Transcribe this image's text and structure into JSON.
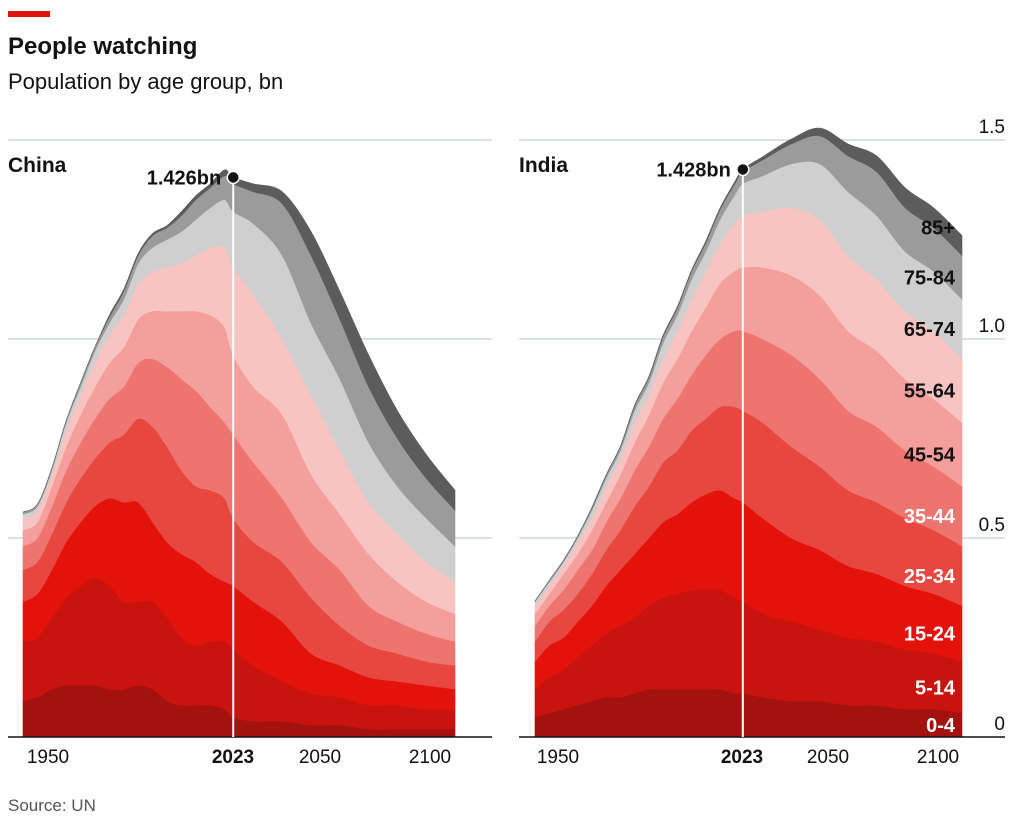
{
  "title": "People watching",
  "subtitle": "Population by age group, bn",
  "source": "Source: UN",
  "colors": {
    "accent": "#e3120b",
    "grid": "#b7c6cf",
    "axis": "#121212",
    "bands": [
      "#a3120e",
      "#c9130f",
      "#e3120b",
      "#e8473f",
      "#ee7470",
      "#f49f9b",
      "#f7c4c1",
      "#cfcfcf",
      "#9b9b9b",
      "#5c5c5c"
    ]
  },
  "chart_data": [
    {
      "type": "area",
      "stacked": true,
      "panel": "China",
      "x": [
        1950,
        1955,
        1960,
        1965,
        1970,
        1975,
        1980,
        1985,
        1990,
        1995,
        2000,
        2005,
        2010,
        2015,
        2020,
        2023,
        2030,
        2040,
        2050,
        2060,
        2070,
        2080,
        2090,
        2100
      ],
      "series": [
        {
          "name": "0-4",
          "values": [
            0.09,
            0.1,
            0.12,
            0.13,
            0.13,
            0.13,
            0.12,
            0.12,
            0.13,
            0.12,
            0.09,
            0.08,
            0.08,
            0.08,
            0.07,
            0.05,
            0.04,
            0.04,
            0.03,
            0.03,
            0.02,
            0.02,
            0.02,
            0.02
          ]
        },
        {
          "name": "5-14",
          "values": [
            0.15,
            0.15,
            0.18,
            0.22,
            0.25,
            0.27,
            0.26,
            0.22,
            0.21,
            0.22,
            0.21,
            0.17,
            0.15,
            0.16,
            0.17,
            0.17,
            0.14,
            0.1,
            0.08,
            0.07,
            0.06,
            0.06,
            0.05,
            0.05
          ]
        },
        {
          "name": "15-24",
          "values": [
            0.1,
            0.11,
            0.12,
            0.14,
            0.16,
            0.18,
            0.22,
            0.25,
            0.25,
            0.2,
            0.19,
            0.21,
            0.21,
            0.17,
            0.15,
            0.16,
            0.16,
            0.15,
            0.1,
            0.08,
            0.07,
            0.06,
            0.06,
            0.05
          ]
        },
        {
          "name": "25-34",
          "values": [
            0.08,
            0.08,
            0.09,
            0.1,
            0.11,
            0.12,
            0.14,
            0.17,
            0.21,
            0.24,
            0.24,
            0.21,
            0.19,
            0.21,
            0.21,
            0.17,
            0.15,
            0.15,
            0.14,
            0.1,
            0.08,
            0.07,
            0.06,
            0.06
          ]
        },
        {
          "name": "35-44",
          "values": [
            0.06,
            0.06,
            0.07,
            0.08,
            0.09,
            0.1,
            0.11,
            0.12,
            0.14,
            0.17,
            0.2,
            0.23,
            0.24,
            0.21,
            0.19,
            0.21,
            0.2,
            0.16,
            0.14,
            0.14,
            0.1,
            0.08,
            0.07,
            0.06
          ]
        },
        {
          "name": "45-54",
          "values": [
            0.04,
            0.04,
            0.05,
            0.06,
            0.07,
            0.08,
            0.09,
            0.1,
            0.11,
            0.12,
            0.14,
            0.17,
            0.2,
            0.23,
            0.24,
            0.2,
            0.19,
            0.21,
            0.17,
            0.14,
            0.13,
            0.1,
            0.08,
            0.07
          ]
        },
        {
          "name": "55-64",
          "values": [
            0.03,
            0.03,
            0.03,
            0.04,
            0.05,
            0.06,
            0.07,
            0.08,
            0.09,
            0.1,
            0.11,
            0.12,
            0.14,
            0.17,
            0.2,
            0.22,
            0.23,
            0.19,
            0.2,
            0.16,
            0.13,
            0.12,
            0.1,
            0.08
          ]
        },
        {
          "name": "65-74",
          "values": [
            0.01,
            0.01,
            0.01,
            0.02,
            0.02,
            0.03,
            0.03,
            0.04,
            0.05,
            0.06,
            0.07,
            0.08,
            0.09,
            0.1,
            0.12,
            0.14,
            0.18,
            0.21,
            0.18,
            0.18,
            0.15,
            0.12,
            0.11,
            0.09
          ]
        },
        {
          "name": "75-84",
          "values": [
            0.005,
            0.005,
            0.005,
            0.005,
            0.01,
            0.01,
            0.015,
            0.02,
            0.02,
            0.03,
            0.03,
            0.04,
            0.05,
            0.05,
            0.06,
            0.07,
            0.08,
            0.13,
            0.17,
            0.15,
            0.14,
            0.12,
            0.1,
            0.09
          ]
        },
        {
          "name": "85+",
          "values": [
            0.0,
            0.0,
            0.0,
            0.0,
            0.0,
            0.0,
            0.005,
            0.005,
            0.005,
            0.005,
            0.005,
            0.01,
            0.01,
            0.01,
            0.015,
            0.016,
            0.02,
            0.03,
            0.06,
            0.07,
            0.08,
            0.07,
            0.06,
            0.05
          ]
        }
      ],
      "annotation": {
        "x": 2023,
        "label": "1.426bn"
      },
      "xticks": [
        1950,
        2023,
        2050,
        2100
      ],
      "xlim": [
        1950,
        2100
      ],
      "ylim": [
        0,
        1.5
      ],
      "yticks": [
        0,
        0.5,
        1.0,
        1.5
      ],
      "grid": true
    },
    {
      "type": "area",
      "stacked": true,
      "panel": "India",
      "x": [
        1950,
        1955,
        1960,
        1965,
        1970,
        1975,
        1980,
        1985,
        1990,
        1995,
        2000,
        2005,
        2010,
        2015,
        2020,
        2023,
        2030,
        2040,
        2050,
        2060,
        2070,
        2080,
        2090,
        2100
      ],
      "series": [
        {
          "name": "0-4",
          "values": [
            0.05,
            0.06,
            0.07,
            0.08,
            0.09,
            0.1,
            0.1,
            0.11,
            0.12,
            0.12,
            0.12,
            0.12,
            0.12,
            0.12,
            0.11,
            0.11,
            0.1,
            0.09,
            0.09,
            0.08,
            0.08,
            0.07,
            0.07,
            0.06
          ]
        },
        {
          "name": "5-14",
          "values": [
            0.07,
            0.09,
            0.1,
            0.12,
            0.14,
            0.16,
            0.18,
            0.19,
            0.21,
            0.23,
            0.24,
            0.25,
            0.25,
            0.25,
            0.24,
            0.23,
            0.21,
            0.2,
            0.18,
            0.17,
            0.16,
            0.15,
            0.14,
            0.13
          ]
        },
        {
          "name": "15-24",
          "values": [
            0.07,
            0.08,
            0.08,
            0.09,
            0.1,
            0.12,
            0.14,
            0.16,
            0.17,
            0.19,
            0.2,
            0.22,
            0.24,
            0.25,
            0.25,
            0.25,
            0.24,
            0.21,
            0.2,
            0.18,
            0.17,
            0.16,
            0.15,
            0.14
          ]
        },
        {
          "name": "25-34",
          "values": [
            0.05,
            0.06,
            0.07,
            0.07,
            0.08,
            0.09,
            0.1,
            0.12,
            0.13,
            0.15,
            0.16,
            0.18,
            0.19,
            0.21,
            0.23,
            0.23,
            0.24,
            0.23,
            0.21,
            0.19,
            0.18,
            0.17,
            0.16,
            0.15
          ]
        },
        {
          "name": "35-44",
          "values": [
            0.04,
            0.04,
            0.05,
            0.06,
            0.06,
            0.07,
            0.08,
            0.09,
            0.1,
            0.11,
            0.13,
            0.14,
            0.16,
            0.17,
            0.19,
            0.2,
            0.21,
            0.23,
            0.22,
            0.2,
            0.19,
            0.17,
            0.16,
            0.15
          ]
        },
        {
          "name": "45-54",
          "values": [
            0.03,
            0.03,
            0.04,
            0.04,
            0.05,
            0.05,
            0.06,
            0.07,
            0.08,
            0.09,
            0.1,
            0.11,
            0.12,
            0.14,
            0.15,
            0.16,
            0.18,
            0.2,
            0.21,
            0.2,
            0.19,
            0.18,
            0.17,
            0.16
          ]
        },
        {
          "name": "55-64",
          "values": [
            0.02,
            0.02,
            0.02,
            0.03,
            0.03,
            0.04,
            0.04,
            0.05,
            0.05,
            0.06,
            0.07,
            0.08,
            0.09,
            0.1,
            0.12,
            0.13,
            0.14,
            0.17,
            0.19,
            0.19,
            0.18,
            0.17,
            0.17,
            0.16
          ]
        },
        {
          "name": "65-74",
          "values": [
            0.01,
            0.01,
            0.01,
            0.01,
            0.02,
            0.02,
            0.02,
            0.03,
            0.03,
            0.04,
            0.04,
            0.05,
            0.05,
            0.06,
            0.07,
            0.08,
            0.09,
            0.11,
            0.14,
            0.16,
            0.16,
            0.15,
            0.15,
            0.15
          ]
        },
        {
          "name": "75-84",
          "values": [
            0.002,
            0.003,
            0.004,
            0.005,
            0.006,
            0.008,
            0.01,
            0.012,
            0.014,
            0.016,
            0.018,
            0.02,
            0.022,
            0.025,
            0.028,
            0.03,
            0.04,
            0.05,
            0.07,
            0.09,
            0.11,
            0.11,
            0.11,
            0.11
          ]
        },
        {
          "name": "85+",
          "values": [
            0.0,
            0.0,
            0.0,
            0.0,
            0.001,
            0.001,
            0.001,
            0.002,
            0.002,
            0.003,
            0.003,
            0.003,
            0.004,
            0.004,
            0.005,
            0.006,
            0.008,
            0.012,
            0.02,
            0.03,
            0.04,
            0.05,
            0.05,
            0.05
          ]
        }
      ],
      "annotation": {
        "x": 2023,
        "label": "1.428bn"
      },
      "xticks": [
        1950,
        2023,
        2050,
        2100
      ],
      "xlim": [
        1950,
        2100
      ],
      "ylim": [
        0,
        1.5
      ],
      "yticks": [
        0,
        0.5,
        1.0,
        1.5
      ],
      "grid": true
    }
  ],
  "ytick_labels": [
    "0",
    "0.5",
    "1.0",
    "1.5"
  ],
  "band_labels": [
    "0-4",
    "5-14",
    "15-24",
    "25-34",
    "35-44",
    "45-54",
    "55-64",
    "65-74",
    "75-84",
    "85+"
  ]
}
